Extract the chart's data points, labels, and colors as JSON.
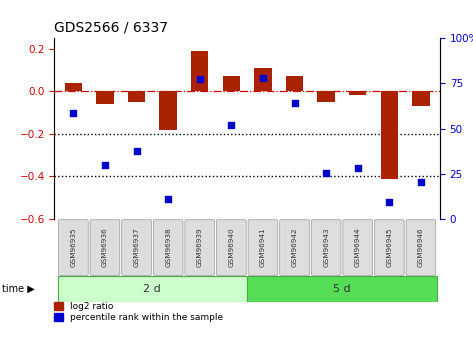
{
  "title": "GDS2566 / 6337",
  "samples": [
    "GSM96935",
    "GSM96936",
    "GSM96937",
    "GSM96938",
    "GSM96939",
    "GSM96940",
    "GSM96941",
    "GSM96942",
    "GSM96943",
    "GSM96944",
    "GSM96945",
    "GSM96946"
  ],
  "log2_ratio": [
    0.04,
    -0.06,
    -0.05,
    -0.18,
    0.19,
    0.07,
    0.11,
    0.07,
    -0.05,
    -0.02,
    -0.41,
    -0.07
  ],
  "pct_rank": [
    62,
    32,
    40,
    12,
    82,
    55,
    83,
    68,
    27,
    30,
    10,
    22
  ],
  "bar_color": "#aa2200",
  "dot_color": "#0000cc",
  "group1_color": "#ccffcc",
  "group2_color": "#55dd55",
  "ylim_left": [
    -0.6,
    0.25
  ],
  "ylim_right": [
    0,
    100
  ],
  "yticks_left": [
    0.2,
    0.0,
    -0.2,
    -0.4,
    -0.6
  ],
  "yticks_right": [
    100,
    75,
    50,
    25,
    0
  ],
  "legend_items": [
    {
      "label": "log2 ratio",
      "color": "#aa2200"
    },
    {
      "label": "percentile rank within the sample",
      "color": "#0000cc"
    }
  ]
}
